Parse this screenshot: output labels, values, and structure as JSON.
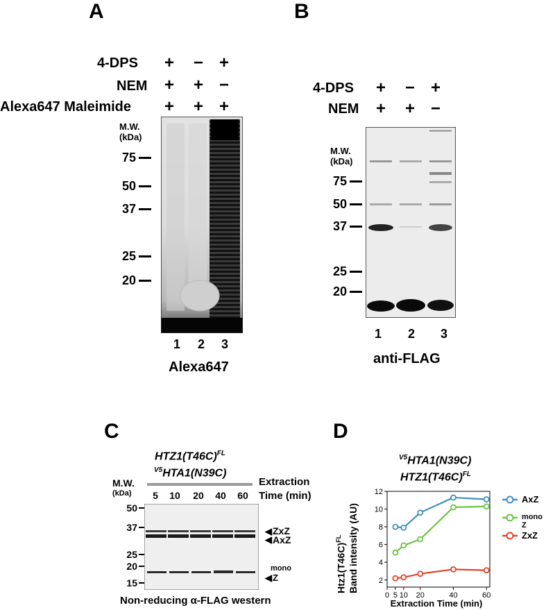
{
  "panel_a": {
    "letter": "A",
    "conditions": [
      {
        "label": "4-DPS",
        "signs": [
          "+",
          "−",
          "+"
        ]
      },
      {
        "label": "NEM",
        "signs": [
          "+",
          "+",
          "−"
        ]
      },
      {
        "label": "Alexa647 Maleimide",
        "signs": [
          "+",
          "+",
          "+"
        ]
      }
    ],
    "mw_header": [
      "M.W.",
      "(kDa)"
    ],
    "markers": [
      "75",
      "50",
      "37",
      "25",
      "20"
    ],
    "lanes": [
      "1",
      "2",
      "3"
    ],
    "caption": "Alexa647"
  },
  "panel_b": {
    "letter": "B",
    "conditions": [
      {
        "label": "4-DPS",
        "signs": [
          "+",
          "−",
          "+"
        ]
      },
      {
        "label": "NEM",
        "signs": [
          "+",
          "+",
          "−"
        ]
      }
    ],
    "mw_header": [
      "M.W.",
      "(kDa)"
    ],
    "markers": [
      "75",
      "50",
      "37",
      "25",
      "20"
    ],
    "lanes": [
      "1",
      "2",
      "3"
    ],
    "caption": "anti-FLAG"
  },
  "panel_c": {
    "letter": "C",
    "construct_line1": "HTZ1(T46C)",
    "construct_line1_sup": "FL",
    "construct_line2_pre": "V5",
    "construct_line2": "HTA1(N39C)",
    "extraction_label": "Extraction",
    "time_label": "Time (min)",
    "mw_header": [
      "M.W.",
      "(kDa)"
    ],
    "markers": [
      "50",
      "37",
      "25",
      "20",
      "15"
    ],
    "times": [
      "5",
      "10",
      "20",
      "40",
      "60"
    ],
    "band_labels": {
      "zxz": "ZxZ",
      "axz": "AxZ",
      "mono_top": "mono",
      "mono_bottom": "Z"
    },
    "caption": "Non-reducing α-FLAG western"
  },
  "panel_d": {
    "letter": "D",
    "title_line1_pre": "V5",
    "title_line1": "HTA1(N39C)",
    "title_line2": "HTZ1(T46C)",
    "title_line2_sup": "FL",
    "ylabel_line1": "Htz1(T46C)",
    "ylabel_line1_sup": "FL",
    "ylabel_line2": "Band intensity (AU)",
    "legend": [
      {
        "label": "AxZ",
        "color": "#3f8fc2"
      },
      {
        "label": "mono Z",
        "color": "#6cc24a"
      },
      {
        "label": "ZxZ",
        "color": "#e0442c"
      }
    ]
  },
  "chart_data": {
    "type": "line",
    "title": "",
    "xlabel": "Extraction Time (min)",
    "ylabel": "Htz1(T46C)FL Band intensity (AU)",
    "x": [
      5,
      10,
      20,
      40,
      60
    ],
    "x_ticks": [
      "0",
      "5",
      "10",
      "20",
      "40",
      "60"
    ],
    "y_ticks": [
      "2",
      "4",
      "6",
      "8",
      "10",
      "12"
    ],
    "xlim": [
      0,
      62
    ],
    "ylim": [
      1.2,
      12
    ],
    "series": [
      {
        "name": "AxZ",
        "color": "#3f8fc2",
        "values": [
          8.0,
          7.9,
          9.6,
          11.3,
          11.1
        ]
      },
      {
        "name": "mono Z",
        "color": "#6cc24a",
        "values": [
          5.1,
          5.9,
          6.6,
          10.2,
          10.3
        ]
      },
      {
        "name": "ZxZ",
        "color": "#e0442c",
        "values": [
          2.2,
          2.3,
          2.7,
          3.2,
          3.1
        ]
      }
    ],
    "grid": false,
    "legend_position": "right"
  }
}
